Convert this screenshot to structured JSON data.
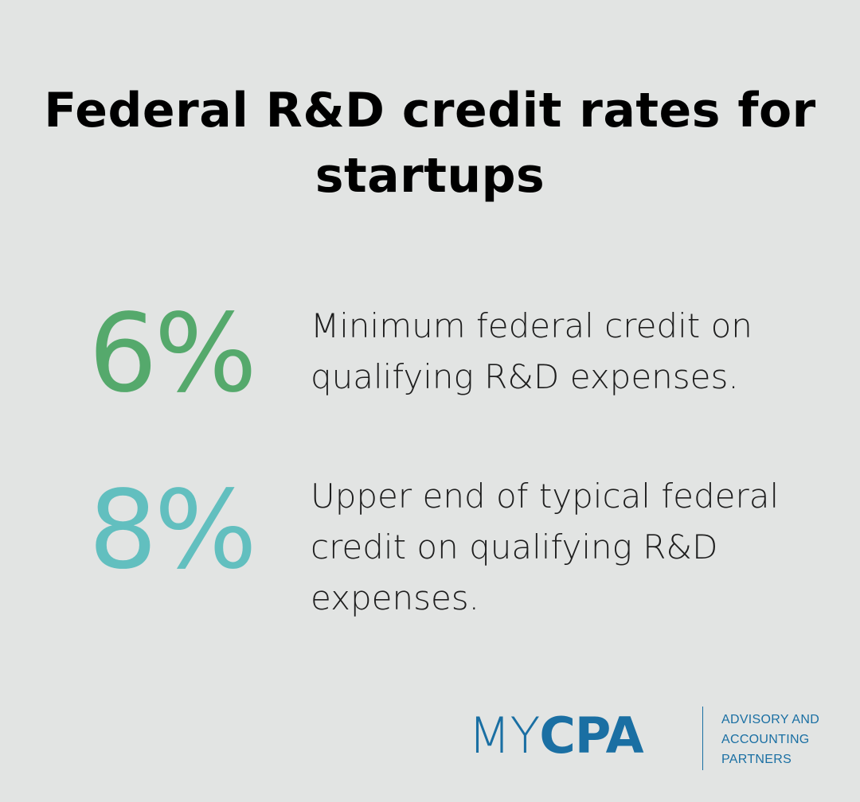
{
  "title": "Federal R&D credit rates for startups",
  "stats": [
    {
      "value": "6%",
      "description": "Minimum federal credit on qualifying R&D expenses.",
      "color": "#55a96c"
    },
    {
      "value": "8%",
      "description": "Upper end of typical federal credit on qualifying R&D expenses.",
      "color": "#62bfbf"
    }
  ],
  "logo": {
    "my": "MY",
    "cpa": "CPA",
    "tagline_line1": "ADVISORY AND",
    "tagline_line2": "ACCOUNTING",
    "tagline_line3": "PARTNERS",
    "color": "#1a6fa3"
  },
  "colors": {
    "background": "#e2e4e3",
    "title": "#000000",
    "text": "#1e1e1e"
  }
}
